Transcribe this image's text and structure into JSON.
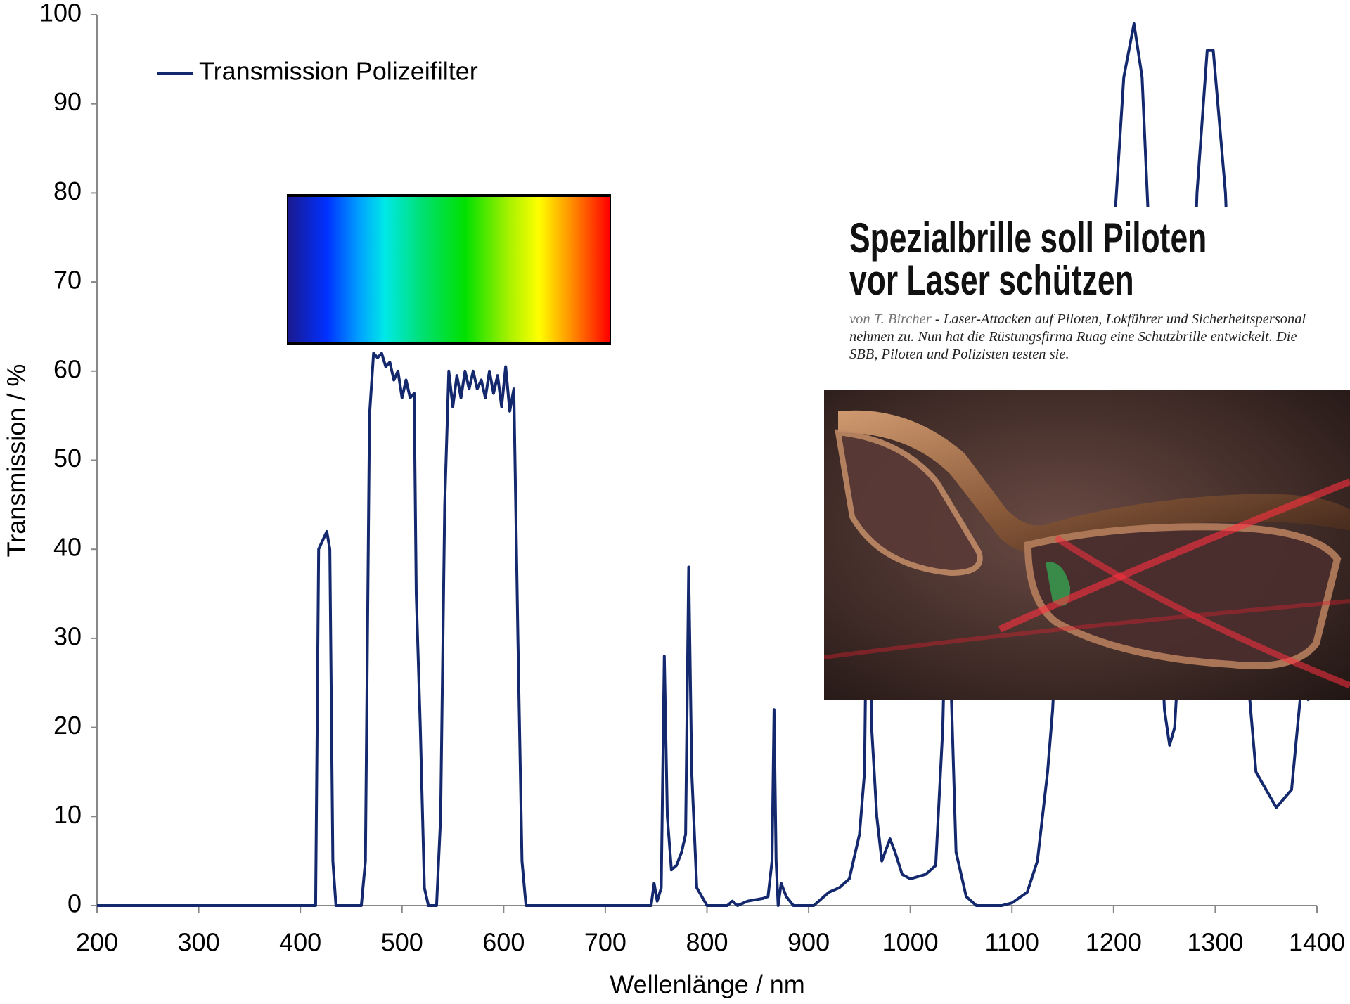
{
  "chart_data": {
    "type": "line",
    "xlabel": "Wellenlänge  / nm",
    "ylabel": "Transmission  / %",
    "xlim": [
      200,
      1400
    ],
    "ylim": [
      0,
      100
    ],
    "xticks": [
      200,
      300,
      400,
      500,
      600,
      700,
      800,
      900,
      1000,
      1100,
      1200,
      1300,
      1400
    ],
    "yticks": [
      0,
      10,
      20,
      30,
      40,
      50,
      60,
      70,
      80,
      90,
      100
    ],
    "grid": false,
    "legend": "top-left",
    "x": [
      200,
      410,
      415,
      418,
      422,
      426,
      429,
      432,
      435,
      460,
      464,
      468,
      472,
      476,
      480,
      484,
      488,
      492,
      496,
      500,
      504,
      508,
      512,
      514,
      518,
      522,
      526,
      534,
      538,
      542,
      546,
      550,
      554,
      558,
      562,
      566,
      570,
      574,
      578,
      582,
      586,
      590,
      594,
      598,
      602,
      606,
      610,
      614,
      618,
      622,
      745,
      748,
      751,
      755,
      758,
      761,
      765,
      770,
      775,
      779,
      782,
      785,
      790,
      800,
      820,
      825,
      830,
      840,
      855,
      860,
      864,
      866,
      868,
      870,
      873,
      878,
      885,
      905,
      920,
      930,
      940,
      950,
      955,
      958,
      962,
      967,
      972,
      980,
      985,
      992,
      1000,
      1015,
      1025,
      1032,
      1035,
      1040,
      1045,
      1055,
      1065,
      1090,
      1100,
      1115,
      1125,
      1135,
      1140,
      1150,
      1200,
      1210,
      1220,
      1228,
      1235,
      1245,
      1250,
      1255,
      1260,
      1270,
      1282,
      1292,
      1298,
      1310,
      1325,
      1340,
      1360,
      1375,
      1385,
      1392
    ],
    "series": [
      {
        "name": "Transmission Polizeifilter",
        "color": "#14286e",
        "values": [
          0,
          0,
          0,
          40,
          41,
          42,
          40,
          5,
          0,
          0,
          5,
          55,
          62,
          61.5,
          62,
          60.5,
          61,
          59,
          60,
          57,
          59,
          57,
          57.5,
          35,
          20,
          2,
          0,
          0,
          10,
          45,
          60,
          56,
          59.5,
          57,
          60,
          58,
          60,
          58,
          59,
          57,
          60,
          57.5,
          59.5,
          56,
          60.5,
          55.5,
          58,
          30,
          5,
          0,
          0,
          2.5,
          0.5,
          2,
          28,
          10,
          4,
          4.5,
          6,
          8,
          38,
          15,
          2,
          0,
          0,
          0.5,
          0,
          0.5,
          0.8,
          1,
          5,
          22,
          5,
          0,
          2.5,
          1,
          0,
          0,
          1.5,
          2,
          3,
          8,
          15,
          45,
          20,
          10,
          5,
          7.5,
          6,
          3.5,
          3,
          3.5,
          4.5,
          20,
          35,
          25,
          6,
          1,
          0,
          0,
          0.3,
          1.5,
          5,
          15,
          22,
          45,
          75,
          93,
          99,
          93,
          75,
          35,
          22,
          18,
          20,
          40,
          80,
          96,
          96,
          80,
          35,
          15,
          11,
          13,
          25,
          23
        ]
      }
    ]
  },
  "article": {
    "headline": [
      "Spezialbrille soll Piloten",
      "vor Laser schützen"
    ],
    "author": "von T. Bircher",
    "teaser": " - Laser-Attacken auf Piloten, Lokführer und Sicherheitspersonal nehmen zu. Nun hat die Rüstungsfirma Ruag eine Schutzbrille entwickelt. Die SBB, Piloten und Polizisten testen sie."
  }
}
